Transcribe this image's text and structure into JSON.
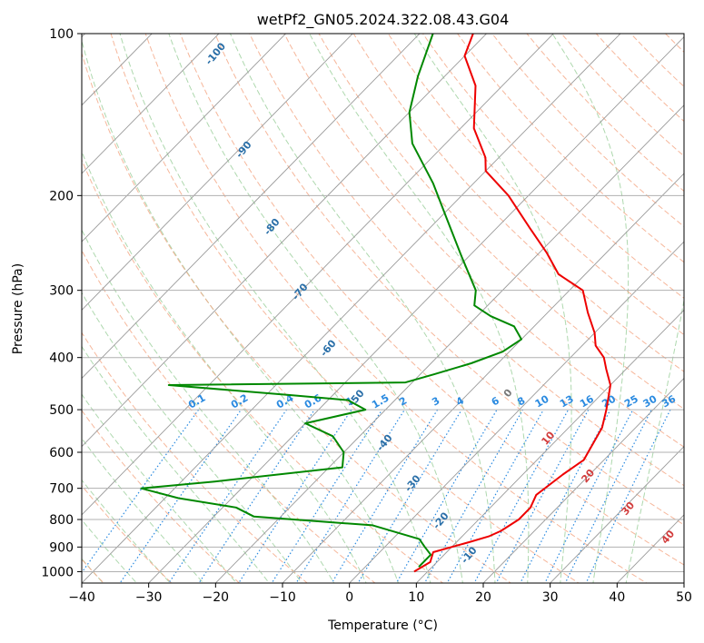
{
  "chart_data": {
    "type": "line",
    "title": "wetPf2_GN05.2024.322.08.43.G04",
    "xlabel": "Temperature (°C)",
    "ylabel": "Pressure (hPa)",
    "xlim": [
      -40,
      50
    ],
    "ylim": [
      1050,
      100
    ],
    "yscale": "log",
    "skew": "skew-T log-p",
    "grid": true,
    "x_ticks": [
      "−40",
      "−30",
      "−20",
      "−10",
      "0",
      "10",
      "20",
      "30",
      "40",
      "50"
    ],
    "y_ticks": [
      "100",
      "200",
      "300",
      "400",
      "500",
      "600",
      "700",
      "800",
      "900",
      "1000"
    ],
    "dry_adiabat_labels": [
      "-100",
      "-90",
      "-80",
      "-70",
      "-60",
      "-50",
      "-40",
      "-30",
      "-20",
      "-10"
    ],
    "mixing_ratio_labels": [
      "0.1",
      "0.2",
      "0.4",
      "0.6",
      "1",
      "1.5",
      "2",
      "3",
      "4",
      "6",
      "8",
      "10",
      "13",
      "16",
      "20",
      "25",
      "30",
      "36"
    ],
    "moist_adiabat_labels": [
      "0",
      "10",
      "20",
      "30",
      "40"
    ],
    "series": [
      {
        "color": "#ee0000",
        "points": [
          [
            8,
            1000
          ],
          [
            9,
            960
          ],
          [
            8,
            920
          ],
          [
            12,
            880
          ],
          [
            14,
            860
          ],
          [
            15,
            840
          ],
          [
            16,
            800
          ],
          [
            16,
            760
          ],
          [
            15,
            720
          ],
          [
            16,
            660
          ],
          [
            17,
            620
          ],
          [
            15,
            540
          ],
          [
            13,
            500
          ],
          [
            10,
            450
          ],
          [
            7,
            420
          ],
          [
            5,
            400
          ],
          [
            2,
            380
          ],
          [
            0,
            360
          ],
          [
            -4,
            330
          ],
          [
            -8,
            300
          ],
          [
            -14,
            280
          ],
          [
            -19,
            255
          ],
          [
            -25,
            230
          ],
          [
            -33,
            200
          ],
          [
            -40,
            180
          ],
          [
            -42,
            170
          ],
          [
            -48,
            150
          ],
          [
            -54,
            125
          ],
          [
            -60,
            110
          ],
          [
            -62,
            100
          ]
        ]
      },
      {
        "color": "#008800",
        "points": [
          [
            8,
            980
          ],
          [
            8,
            930
          ],
          [
            6,
            900
          ],
          [
            4,
            870
          ],
          [
            -5,
            820
          ],
          [
            -24,
            790
          ],
          [
            -28,
            760
          ],
          [
            -38,
            730
          ],
          [
            -45,
            700
          ],
          [
            -35,
            680
          ],
          [
            -18,
            640
          ],
          [
            -20,
            600
          ],
          [
            -24,
            560
          ],
          [
            -30,
            530
          ],
          [
            -23,
            500
          ],
          [
            -27,
            480
          ],
          [
            -36,
            470
          ],
          [
            -56,
            450
          ],
          [
            -21,
            445
          ],
          [
            -18,
            430
          ],
          [
            -14,
            410
          ],
          [
            -11,
            390
          ],
          [
            -10,
            370
          ],
          [
            -13,
            350
          ],
          [
            -18,
            335
          ],
          [
            -22,
            320
          ],
          [
            -24,
            300
          ],
          [
            -31,
            260
          ],
          [
            -39,
            220
          ],
          [
            -46,
            190
          ],
          [
            -55,
            160
          ],
          [
            -60,
            140
          ],
          [
            -64,
            120
          ],
          [
            -68,
            100
          ]
        ]
      }
    ]
  }
}
